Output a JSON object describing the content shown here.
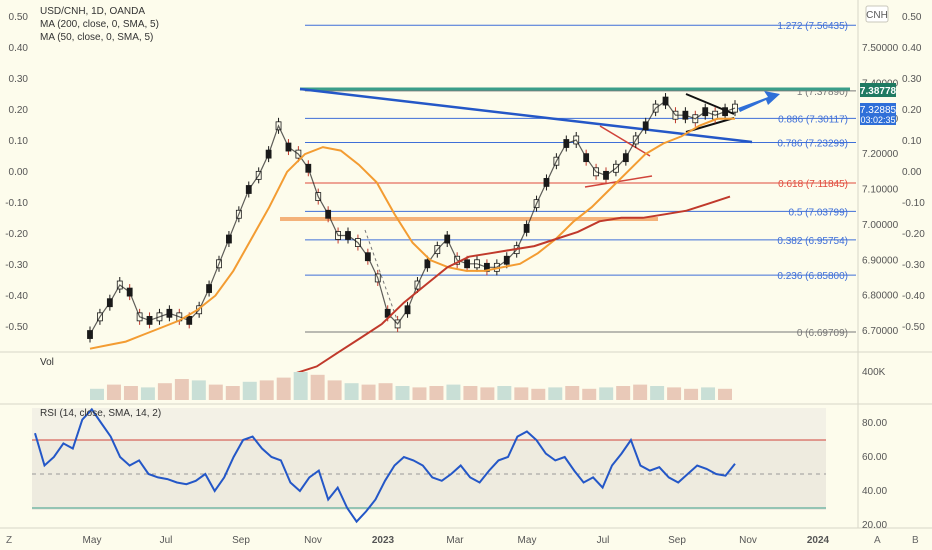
{
  "chart_data": [
    {
      "type": "candlestick",
      "title": "USD/CNH, 1D, OANDA",
      "indicators": [
        "MA (200, close, 0, SMA, 5)",
        "MA (50, close, 0, SMA, 5)"
      ],
      "currency_badge": "CNH",
      "right_axis_ticks": [
        "7.50000",
        "7.40000",
        "7.30000",
        "7.20000",
        "7.10000",
        "7.00000",
        "6.90000",
        "6.80000",
        "6.70000"
      ],
      "left_axis_ticks": [
        "0.50",
        "0.40",
        "0.30",
        "0.20",
        "0.10",
        "0.00",
        "-0.10",
        "-0.20",
        "-0.30",
        "-0.40",
        "-0.50"
      ],
      "far_right_axis_ticks": [
        "0.50",
        "0.40",
        "0.30",
        "0.20",
        "0.10",
        "0.00",
        "-0.10",
        "-0.20",
        "-0.30",
        "-0.40",
        "-0.50"
      ],
      "fib_levels": [
        {
          "label": "1.272 (7.56435)",
          "value": 7.56435,
          "color": "#3f6fd8"
        },
        {
          "label": "1 (7.37890)",
          "value": 7.3789,
          "color": "#787878"
        },
        {
          "label": "0.886 (7.30117)",
          "value": 7.30117,
          "color": "#3f6fd8"
        },
        {
          "label": "0.786 (7.23299)",
          "value": 7.23299,
          "color": "#3f6fd8"
        },
        {
          "label": "0.618 (7.11845)",
          "value": 7.11845,
          "color": "#e04a3c"
        },
        {
          "label": "0.5 (7.03799)",
          "value": 7.03799,
          "color": "#3f6fd8"
        },
        {
          "label": "0.382 (6.95754)",
          "value": 6.95754,
          "color": "#3f6fd8"
        },
        {
          "label": "0.236 (6.85800)",
          "value": 6.858,
          "color": "#3f6fd8"
        },
        {
          "label": "0 (6.69709)",
          "value": 6.69709,
          "color": "#787878"
        }
      ],
      "last_price": "7.32885",
      "countdown": "03:02:35",
      "level_badge": "7.38778",
      "price_series_y": [
        6.69,
        6.74,
        6.78,
        6.83,
        6.81,
        6.74,
        6.73,
        6.74,
        6.75,
        6.74,
        6.73,
        6.76,
        6.82,
        6.89,
        6.96,
        7.03,
        7.1,
        7.14,
        7.2,
        7.28,
        7.22,
        7.2,
        7.16,
        7.08,
        7.03,
        6.97,
        6.97,
        6.95,
        6.91,
        6.85,
        6.75,
        6.72,
        6.76,
        6.83,
        6.89,
        6.93,
        6.96,
        6.9,
        6.89,
        6.89,
        6.88,
        6.88,
        6.9,
        6.93,
        6.99,
        7.06,
        7.12,
        7.18,
        7.23,
        7.24,
        7.19,
        7.15,
        7.14,
        7.16,
        7.19,
        7.24,
        7.28,
        7.33,
        7.35,
        7.31,
        7.31,
        7.3,
        7.32,
        7.31,
        7.32,
        7.33
      ],
      "ma50_y": [
        6.65,
        6.66,
        6.67,
        6.69,
        6.71,
        6.73,
        6.76,
        6.8,
        6.87,
        6.96,
        7.05,
        7.15,
        7.2,
        7.22,
        7.21,
        7.17,
        7.12,
        7.03,
        6.95,
        6.9,
        6.88,
        6.87,
        6.87,
        6.88,
        6.89,
        6.92,
        6.96,
        7.01,
        7.05,
        7.1,
        7.15,
        7.2,
        7.23,
        7.25,
        7.28,
        7.3,
        7.3
      ],
      "ma200_y": [
        6.58,
        6.6,
        6.64,
        6.68,
        6.72,
        6.78,
        6.83,
        6.88,
        6.91,
        6.92,
        6.93,
        6.94,
        6.96,
        6.98,
        7.01,
        7.02,
        7.02,
        7.03,
        7.04,
        7.06,
        7.08
      ],
      "volume_label": "Vol",
      "volume_axis": [
        "400K"
      ],
      "volume_values": [
        0.4,
        0.55,
        0.5,
        0.45,
        0.6,
        0.75,
        0.7,
        0.55,
        0.5,
        0.65,
        0.7,
        0.8,
        1.0,
        0.9,
        0.7,
        0.6,
        0.55,
        0.6,
        0.5,
        0.45,
        0.5,
        0.55,
        0.5,
        0.45,
        0.5,
        0.45,
        0.4,
        0.45,
        0.5,
        0.4,
        0.45,
        0.5,
        0.55,
        0.5,
        0.45,
        0.4,
        0.45,
        0.4
      ],
      "rsi_label": "RSI (14, close, SMA, 14, 2)",
      "rsi_axis": [
        "80.00",
        "60.00",
        "40.00",
        "20.00"
      ],
      "rsi_bands": [
        70,
        30
      ],
      "rsi_values": [
        74,
        55,
        60,
        68,
        65,
        82,
        88,
        80,
        72,
        60,
        55,
        58,
        50,
        48,
        47,
        45,
        44,
        46,
        50,
        40,
        48,
        60,
        70,
        72,
        65,
        60,
        58,
        45,
        40,
        48,
        52,
        35,
        42,
        30,
        22,
        28,
        35,
        46,
        55,
        60,
        58,
        55,
        48,
        46,
        50,
        55,
        48,
        45,
        52,
        58,
        60,
        72,
        75,
        70,
        62,
        58,
        60,
        52,
        45,
        48,
        42,
        55,
        62,
        70,
        55,
        52,
        54,
        48,
        45,
        50,
        55,
        53,
        50,
        49,
        56
      ],
      "time_ticks": [
        "May",
        "Jul",
        "Sep",
        "Nov",
        "2023",
        "Mar",
        "May",
        "Jul",
        "Sep",
        "Nov",
        "2024"
      ],
      "corner_labels": [
        "Z",
        "A",
        "B"
      ]
    }
  ]
}
